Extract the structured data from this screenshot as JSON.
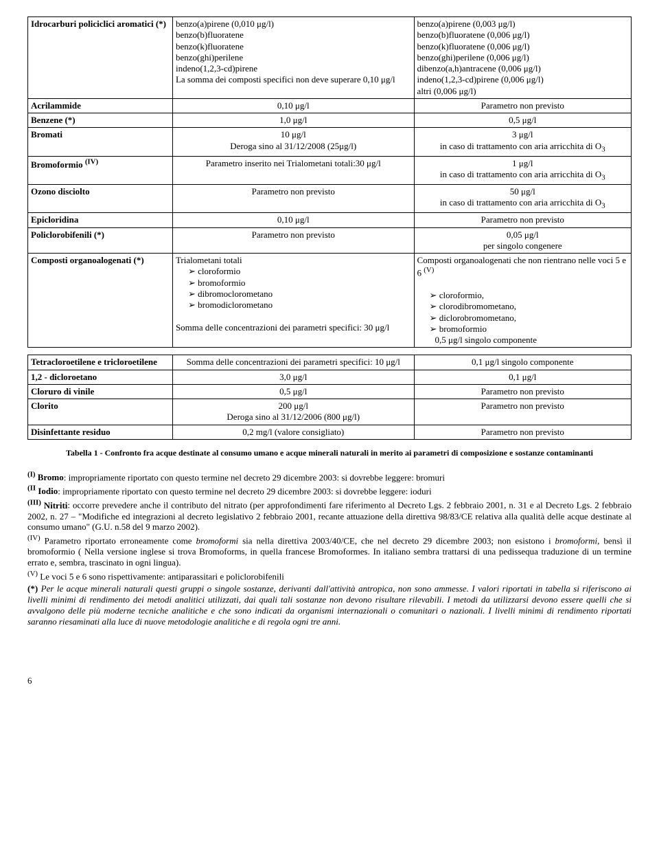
{
  "table1": {
    "rows": [
      {
        "c0": "<b>Idrocarburi policiclici aromatici (*)</b>",
        "c1": "benzo(a)pirene  (0,010 μg/l)<br>benzo(b)fluoratene<br>benzo(k)fluoratene<br>benzo(ghi)perilene<br>indeno(1,2,3-cd)pirene<br>La somma dei composti specifici non deve superare 0,10 μg/l",
        "c2": "benzo(a)pirene (0,003 μg/l)<br>benzo(b)fluoratene (0,006 μg/l)<br>benzo(k)fluoratene (0,006 μg/l)<br>benzo(ghi)perilene (0,006 μg/l)<br>dibenzo(a,h)antracene (0,006 μg/l)<br>indeno(1,2,3-cd)pirene (0,006 μg/l)<br>altri (0,006 μg/l)"
      },
      {
        "c0": "<b>Acrilammide</b>",
        "c1": "<div class='center'>0,10 μg/l</div>",
        "c2": "<div class='center'>Parametro non previsto</div>"
      },
      {
        "c0": "<b>Benzene (*)</b>",
        "c1": "<div class='center'>1,0 μg/l</div>",
        "c2": "<div class='center'>0,5 μg/l</div>"
      },
      {
        "c0": "<b>Bromati</b>",
        "c1": "<div class='center'>10 μg/l<br>Deroga sino al 31/12/2008 (25μg/l)</div>",
        "c2": "<div class='center'>3 μg/l<br>in caso di trattamento con aria arricchita di O<sub>3</sub></div>"
      },
      {
        "c0": "<b>Bromoformio <sup>(IV)</sup></b>",
        "c1": "<div class='center'>Parametro inserito nei Trialometani totali:30 μg/l</div>",
        "c2": "<div class='center'>1 μg/l<br>in caso di trattamento con aria arricchita di O<sub>3</sub></div>"
      },
      {
        "c0": "<b>Ozono disciolto</b>",
        "c1": "<div class='center'>Parametro non previsto</div>",
        "c2": "<div class='center'>50 μg/l<br>in caso di trattamento con aria arricchita di O<sub>3</sub></div>"
      },
      {
        "c0": "<b>Epicloridina</b>",
        "c1": "<div class='center'>0,10 μg/l</div>",
        "c2": "<div class='center'>Parametro non previsto</div>"
      },
      {
        "c0": "<b>Policlorobifenili (*)</b>",
        "c1": "<div class='center'>Parametro non previsto</div>",
        "c2": "<div class='center'>0,05 μg/l<br>per singolo congenere</div>"
      },
      {
        "c0": "<b>Composti organoalogenati (*)</b>",
        "c1": "Trialometani totali<ul class='ul-triangle'><li>cloroformio</li><li>bromoformio</li><li>dibromoclorometano</li><li>bromodiclorometano</li></ul><br>Somma delle concentrazioni dei parametri specifici: 30 μg/l",
        "c2": "Composti organoalogenati che non rientrano nelle voci 5 e 6 <sup>(V)</sup><br><br><ul class='ul-triangle'><li>cloroformio,</li><li>clorodibromometano,</li><li>diclorobromometano,</li><li>bromoformio</li></ul>&nbsp;&nbsp;&nbsp;&nbsp;&nbsp;&nbsp;&nbsp;&nbsp;0,5 μg/l singolo componente"
      }
    ]
  },
  "table2": {
    "rows": [
      {
        "c0": "<b>Tetracloroetilene e tricloroetilene</b>",
        "c1": "<div class='center'>Somma delle concentrazioni dei parametri specifici: 10 μg/l</div>",
        "c2": "<div class='center'>0,1 μg/l singolo componente</div>"
      },
      {
        "c0": "<b>1,2 - dicloroetano</b>",
        "c1": "<div class='center'>3,0 μg/l</div>",
        "c2": "<div class='center'>0,1 μg/l</div>"
      },
      {
        "c0": "<b>Cloruro di vinile</b>",
        "c1": "<div class='center'>0,5 μg/l</div>",
        "c2": "<div class='center'>Parametro non previsto</div>"
      },
      {
        "c0": "<b>Clorito</b>",
        "c1": "<div class='center'>200 μg/l<br>Deroga sino al 31/12/2006 (800 μg/l)</div>",
        "c2": "<div class='center'>Parametro non previsto</div>"
      },
      {
        "c0": "<b>Disinfettante residuo</b>",
        "c1": "<div class='center'>0,2 mg/l (valore consigliato)</div>",
        "c2": "<div class='center'>Parametro non previsto</div>"
      }
    ]
  },
  "caption": "Tabella 1 - Confronto fra acque destinate al consumo umano e acque minerali naturali in merito ai parametri di composizione e sostanze contaminanti",
  "notes": [
    "<b><sup>(I)</sup> Bromo</b>: impropriamente riportato con questo termine nel decreto 29 dicembre 2003: si dovrebbe leggere: bromuri",
    "<b><sup>(II</sup> Iodio</b>: impropriamente riportato con questo termine nel decreto 29 dicembre 2003: si dovrebbe leggere: ioduri",
    "<b><sup>(III)</sup> Nitriti</b>: occorre prevedere anche il contributo del nitrato (per approfondimenti fare riferimento al Decreto Lgs. 2 febbraio 2001, n. 31 e al Decreto Lgs. 2 febbraio 2002, n. 27 – \"Modifiche ed integrazioni al decreto legislativo 2 febbraio 2001, recante attuazione della direttiva 98/83/CE relativa alla qualità delle acque destinate al consumo umano\" (G.U. n.58 del 9 marzo 2002).",
    "<sup>(IV)</sup> Parametro riportato erroneamente come <i>bromoformi</i> sia nella direttiva 2003/40/CE, che nel decreto 29 dicembre 2003; non esistono i <i>bromoformi</i>, bensì il bromoformio ( Nella versione inglese si trova Bromoforms, in quella francese Bromoformes. In italiano sembra trattarsi di una pedissequa traduzione di un termine errato e, sembra, trascinato in ogni lingua).",
    "<sup>(V)</sup> Le voci 5 e 6 sono rispettivamente: antiparassitari e policlorobifenili",
    " <b>(*)</b> <i>Per le acque minerali naturali questi gruppi o singole sostanze, derivanti dall'attività antropica, non sono ammesse. I valori riportati in tabella si riferiscono ai livelli minimi di rendimento dei metodi analitici utilizzati, dai quali tali sostanze non devono risultare rilevabili. I metodi da utilizzarsi devono essere quelli che si avvalgono delle più moderne tecniche analitiche e che sono indicati da organismi internazionali o comunitari o nazionali. I livelli minimi di rendimento riportati saranno riesaminati alla luce di nuove metodologie analitiche e di regola ogni tre anni.</i>"
  ],
  "pageNum": "6"
}
